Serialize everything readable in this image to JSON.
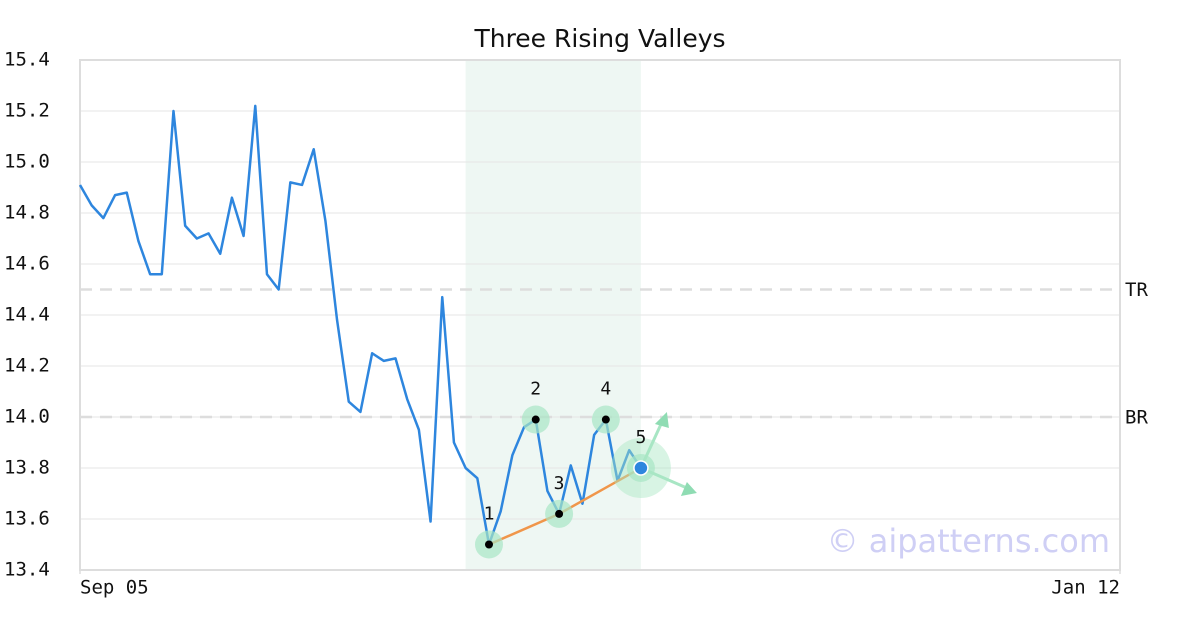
{
  "chart_data": {
    "type": "line",
    "title": "Three Rising Valleys",
    "x": [
      0,
      1,
      2,
      3,
      4,
      5,
      6,
      7,
      8,
      9,
      10,
      11,
      12,
      13,
      14,
      15,
      16,
      17,
      18,
      19,
      20,
      21,
      22,
      23,
      24,
      25,
      26,
      27,
      28,
      29,
      30,
      31,
      32,
      33,
      34,
      35,
      36,
      37,
      38,
      39,
      40,
      41,
      42,
      43,
      44,
      45,
      46,
      47,
      48
    ],
    "series": [
      {
        "color": "#2e86de",
        "values": [
          14.91,
          14.83,
          14.78,
          14.87,
          14.88,
          14.69,
          14.56,
          14.56,
          15.2,
          14.75,
          14.7,
          14.72,
          14.64,
          14.86,
          14.71,
          15.22,
          14.56,
          14.5,
          14.92,
          14.91,
          15.05,
          14.77,
          14.38,
          14.06,
          14.02,
          14.25,
          14.22,
          14.23,
          14.07,
          13.95,
          13.59,
          14.47,
          13.9,
          13.8,
          13.76,
          13.5,
          13.63,
          13.85,
          13.96,
          13.99,
          13.71,
          13.62,
          13.81,
          13.66,
          13.93,
          13.99,
          13.75,
          13.87,
          13.8
        ]
      }
    ],
    "xlim": [
      0,
      89
    ],
    "xticks": [
      {
        "value": 0,
        "label": "Sep 05"
      },
      {
        "value": 89,
        "label": "Jan 12"
      }
    ],
    "ylim": [
      13.4,
      15.4
    ],
    "yticks": [
      13.4,
      13.6,
      13.8,
      {
        "value": 14,
        "label": "14.0"
      },
      14.2,
      14.4,
      14.6,
      14.8,
      {
        "value": 15,
        "label": "15.0"
      },
      15.2,
      15.4
    ],
    "grid": true,
    "levels": [
      {
        "label": "TR",
        "value": 14.5
      },
      {
        "label": "BR",
        "value": 14
      }
    ],
    "pattern": {
      "range": [
        33,
        48
      ],
      "trend_color": "#f0964a",
      "points": [
        {
          "label": "1",
          "x": 35,
          "y": 13.5
        },
        {
          "label": "2",
          "x": 39,
          "y": 13.99
        },
        {
          "label": "3",
          "x": 41,
          "y": 13.62
        },
        {
          "label": "4",
          "x": 45,
          "y": 13.99
        },
        {
          "label": "5",
          "x": 48,
          "y": 13.8
        }
      ]
    },
    "watermark": "© aipatterns.com"
  }
}
